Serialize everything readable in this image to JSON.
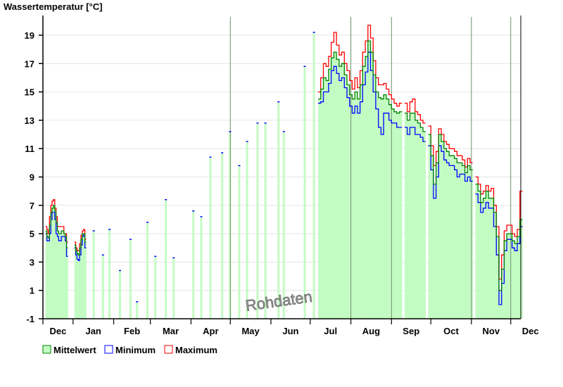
{
  "chart_data": {
    "type": "bar",
    "title": "Wassertemperatur [°C]",
    "xlabel": "",
    "ylabel": "Wassertemperatur [°C]",
    "ylim": [
      -1,
      20.4
    ],
    "xlim_days": [
      0,
      365
    ],
    "grid": true,
    "yticks": [
      -1,
      1,
      3,
      5,
      7,
      9,
      11,
      13,
      15,
      17,
      19
    ],
    "ytick_labels": [
      "-1",
      "1",
      "3",
      "5",
      "7",
      "9",
      "11",
      "13",
      "15",
      "17",
      "19"
    ],
    "month_ticks_days": [
      0,
      23,
      54,
      82,
      113,
      143,
      174,
      204,
      235,
      266,
      296,
      327,
      357,
      365
    ],
    "month_labels": [
      "Dec",
      "Jan",
      "Feb",
      "Mar",
      "Apr",
      "May",
      "Jun",
      "Jul",
      "Aug",
      "Sep",
      "Oct",
      "Nov",
      "Dec"
    ],
    "marker_lines_days": [
      143,
      235,
      266,
      327,
      357
    ],
    "watermark": "Rohdaten",
    "legend": {
      "placement": "bottom-left",
      "items": [
        {
          "label": "Mittelwert",
          "color": "#008000",
          "fill": "#c3fcc3"
        },
        {
          "label": "Minimum",
          "color": "#0000ff"
        },
        {
          "label": "Maximum",
          "color": "#ff0000"
        }
      ]
    },
    "colors": {
      "fill": "#c3fcc3",
      "mean": "#008000",
      "min": "#0000ff",
      "max": "#ff0000",
      "grid": "#e6e6e6",
      "marker": "#6f8f6f"
    },
    "segments": [
      {
        "start_day": 2,
        "step_days": 1,
        "mean": [
          5.2,
          4.8,
          4.7,
          5.6,
          6.5,
          6.8,
          7.0,
          6.6,
          5.8,
          5.2,
          5.0,
          5.0,
          5.2,
          5.2,
          5.0,
          4.8,
          4.0
        ],
        "min": [
          5.0,
          4.5,
          4.5,
          5.0,
          6.0,
          6.5,
          6.5,
          6.0,
          5.0,
          4.8,
          4.5,
          4.5,
          4.8,
          4.8,
          4.8,
          4.5,
          3.4
        ],
        "max": [
          5.5,
          5.3,
          5.0,
          6.2,
          7.0,
          7.3,
          7.4,
          6.8,
          6.2,
          5.5,
          5.5,
          5.5,
          5.5,
          5.5,
          5.0,
          5.0,
          4.4
        ]
      },
      {
        "start_day": 24,
        "step_days": 1,
        "mean": [
          4.2,
          3.8,
          3.6,
          3.5,
          4.0,
          4.6,
          5.0,
          5.0,
          4.4
        ],
        "min": [
          4.0,
          3.5,
          3.2,
          3.1,
          3.5,
          4.2,
          4.8,
          4.9,
          4.0
        ],
        "max": [
          4.4,
          4.0,
          3.8,
          3.8,
          4.3,
          4.9,
          5.2,
          5.3,
          4.6
        ]
      },
      {
        "start_day": 210,
        "step_days": 2,
        "mean": [
          14.5,
          15.2,
          16,
          15.8,
          16.6,
          17.4,
          17.8,
          17.3,
          16.8,
          17,
          16.2,
          15.5,
          14.8,
          14.5,
          15,
          14.5,
          15.5,
          16.8,
          17.5,
          18.6,
          17.8,
          16.2,
          15,
          14.6,
          14.5,
          14.8,
          14.5,
          14.1,
          13.8,
          13.6,
          13.5,
          13.6,
          null,
          13.5,
          13,
          13.5,
          13.5,
          13,
          12.8,
          12.5,
          12.2,
          null,
          12,
          10.5,
          8.5,
          10,
          12,
          11.5,
          11,
          10.8,
          10.5,
          10.5,
          10.3,
          10,
          10,
          9.8,
          9.3,
          9.8,
          9.5,
          null,
          8.5,
          8,
          7.2,
          7.5,
          8,
          7.5,
          7.5,
          6.5,
          4.8,
          1,
          2.5,
          4.5,
          5,
          5,
          4.5,
          4.3,
          4.8,
          6
        ],
        "min": [
          14.2,
          14.3,
          15,
          15,
          15.6,
          16.5,
          16.8,
          16.3,
          15.8,
          16,
          15.3,
          14.6,
          14,
          13.5,
          14,
          13.5,
          14.3,
          15.5,
          16.4,
          17.8,
          16.5,
          15,
          13.8,
          12.5,
          12,
          13.5,
          13.5,
          13,
          12.8,
          12.8,
          12.5,
          12.5,
          null,
          12.5,
          12,
          12.5,
          12.5,
          12,
          12,
          11.8,
          11.5,
          null,
          11.2,
          9.5,
          7.5,
          9,
          11.2,
          10.8,
          10.2,
          10,
          9.8,
          9.8,
          9.5,
          9,
          9.2,
          9.2,
          8.7,
          9,
          8.7,
          null,
          7.8,
          7.2,
          6.5,
          6.8,
          7.2,
          6.8,
          6.8,
          5.5,
          3.5,
          0,
          1.5,
          3.8,
          4.6,
          4.6,
          4,
          3.8,
          4.3,
          5.5
        ],
        "max": [
          15,
          16,
          17,
          16.8,
          17.5,
          18.5,
          19.2,
          18.3,
          17.6,
          17.8,
          17,
          16.5,
          15.8,
          15.2,
          16,
          15.3,
          16.5,
          17.8,
          18.6,
          19.7,
          18.8,
          17.2,
          16,
          15.5,
          15.5,
          15.6,
          15.2,
          14.8,
          14.5,
          14.2,
          14,
          14.2,
          null,
          14.2,
          13.6,
          14.3,
          14.5,
          13.6,
          13.4,
          13,
          12.8,
          null,
          12.6,
          11.2,
          9.8,
          10.8,
          12.4,
          12,
          11.5,
          11.3,
          11,
          11,
          10.8,
          10.5,
          10.5,
          10.2,
          9.7,
          10.3,
          10,
          null,
          9,
          8.5,
          7.8,
          8,
          8.4,
          8,
          8.2,
          7,
          5.5,
          1.8,
          3.5,
          5.2,
          5.6,
          5.6,
          5,
          4.8,
          5.3,
          8
        ]
      }
    ],
    "single_days": [
      {
        "day": 38,
        "value": 5.2
      },
      {
        "day": 45,
        "value": 3.5
      },
      {
        "day": 50,
        "value": 5.3
      },
      {
        "day": 58,
        "value": 2.4
      },
      {
        "day": 66,
        "value": 4.6
      },
      {
        "day": 71,
        "value": 0.2
      },
      {
        "day": 79,
        "value": 5.8
      },
      {
        "day": 85,
        "value": 3.4
      },
      {
        "day": 93,
        "value": 7.4
      },
      {
        "day": 99,
        "value": 3.3
      },
      {
        "day": 114,
        "value": 6.6
      },
      {
        "day": 120,
        "value": 6.2
      },
      {
        "day": 127,
        "value": 10.4
      },
      {
        "day": 136,
        "value": 10.7
      },
      {
        "day": 142,
        "value": 12.2
      },
      {
        "day": 149,
        "value": 9.8
      },
      {
        "day": 155,
        "value": 11.5
      },
      {
        "day": 163,
        "value": 12.8
      },
      {
        "day": 169,
        "value": 12.8
      },
      {
        "day": 179,
        "value": 14.3
      },
      {
        "day": 183,
        "value": 12.2
      },
      {
        "day": 199,
        "value": 16.8
      },
      {
        "day": 206,
        "value": 19.2
      }
    ]
  }
}
